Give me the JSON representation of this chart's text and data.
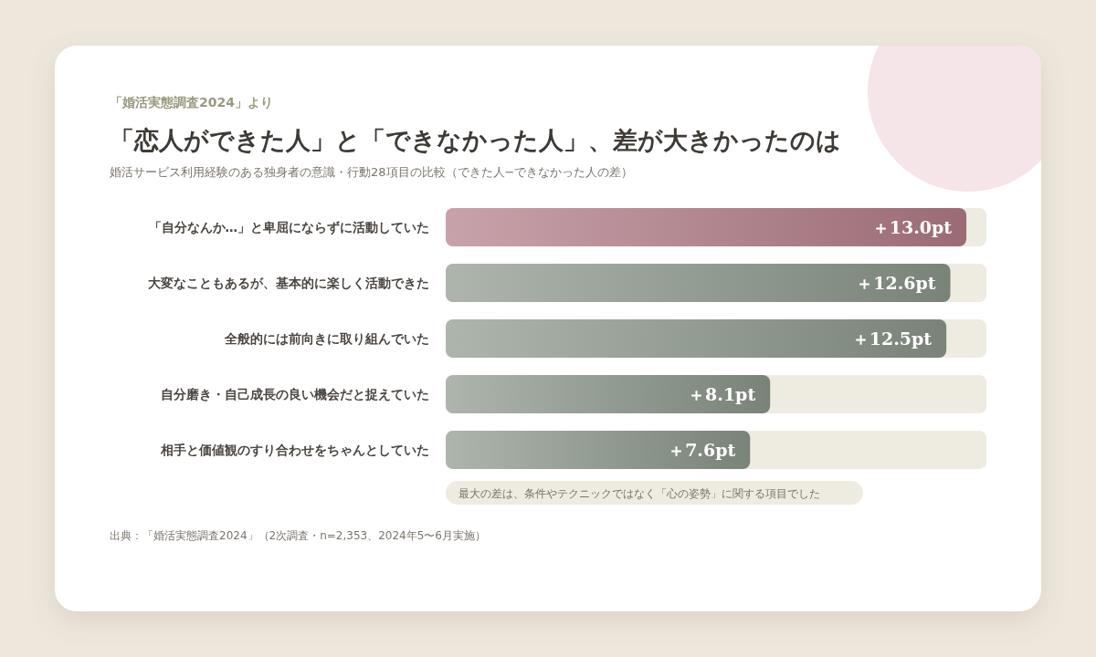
{
  "chart_data": {
    "type": "bar",
    "orientation": "horizontal",
    "title": "「恋人ができた人」と「できなかった人」、差が大きかったのは",
    "subtitle": "婚活サービス利用経験のある独身者の意識・行動28項目の比較（できた人−できなかった人の差）",
    "categories": [
      "「自分なんか…」と卑屈にならずに活動していた",
      "大変なこともあるが、基本的に楽しく活動できた",
      "全般的には前向きに取り組んでいた",
      "自分磨き・自己成長の良い機会だと捉えていた",
      "相手と価値観のすり合わせをちゃんとしていた"
    ],
    "values": [
      13.0,
      12.6,
      12.5,
      8.1,
      7.6
    ],
    "value_labels": [
      "＋13.0pt",
      "＋12.6pt",
      "＋12.5pt",
      "＋8.1pt",
      "＋7.6pt"
    ],
    "colors": [
      "#b07a85",
      "#8a9588",
      "#8a9588",
      "#8a9588",
      "#8a9588"
    ],
    "xlim": [
      0,
      13.5
    ],
    "tick_labels": "y",
    "annotations": [
      "「婚活実態調査2024」より",
      "最大の差は、条件やテクニックではなく「心の姿勢」に関する項目でした",
      "出典：「婚活実態調査2024」（2次調査・n=2,353、2024年5〜6月実施）"
    ]
  }
}
